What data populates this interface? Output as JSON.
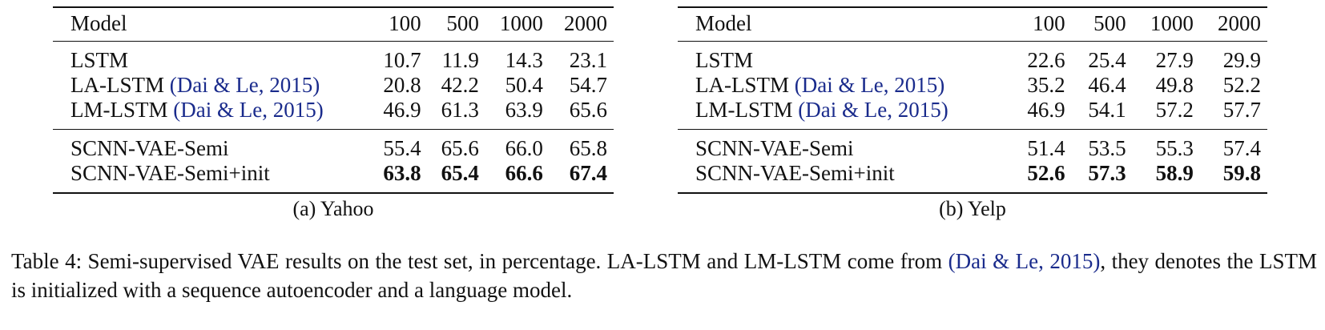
{
  "tables": [
    {
      "header": [
        "Model",
        "100",
        "500",
        "1000",
        "2000"
      ],
      "group1": [
        {
          "name": "LSTM",
          "cite": "",
          "values": [
            "10.7",
            "11.9",
            "14.3",
            "23.1"
          ]
        },
        {
          "name": "LA-LSTM ",
          "cite": "(Dai & Le, 2015)",
          "values": [
            "20.8",
            "42.2",
            "50.4",
            "54.7"
          ]
        },
        {
          "name": "LM-LSTM ",
          "cite": "(Dai & Le, 2015)",
          "values": [
            "46.9",
            "61.3",
            "63.9",
            "65.6"
          ]
        }
      ],
      "group2": [
        {
          "name": "SCNN-VAE-Semi",
          "values": [
            "55.4",
            "65.6",
            "66.0",
            "65.8"
          ]
        },
        {
          "name": "SCNN-VAE-Semi+init",
          "values": [
            "63.8",
            "65.4",
            "66.6",
            "67.4"
          ]
        }
      ],
      "subcaption": "(a) Yahoo"
    },
    {
      "header": [
        "Model",
        "100",
        "500",
        "1000",
        "2000"
      ],
      "group1": [
        {
          "name": "LSTM",
          "cite": "",
          "values": [
            "22.6",
            "25.4",
            "27.9",
            "29.9"
          ]
        },
        {
          "name": "LA-LSTM ",
          "cite": "(Dai & Le, 2015)",
          "values": [
            "35.2",
            "46.4",
            "49.8",
            "52.2"
          ]
        },
        {
          "name": "LM-LSTM ",
          "cite": "(Dai & Le, 2015)",
          "values": [
            "46.9",
            "54.1",
            "57.2",
            "57.7"
          ]
        }
      ],
      "group2": [
        {
          "name": "SCNN-VAE-Semi",
          "values": [
            "51.4",
            "53.5",
            "55.3",
            "57.4"
          ]
        },
        {
          "name": "SCNN-VAE-Semi+init",
          "values": [
            "52.6",
            "57.3",
            "58.9",
            "59.8"
          ]
        }
      ],
      "subcaption": "(b) Yelp"
    }
  ],
  "caption": {
    "part1": "Table 4: Semi-supervised VAE results on the test set, in percentage. LA-LSTM and LM-LSTM come from ",
    "cite": "(Dai & Le, 2015)",
    "part2": ", they denotes the LSTM is initialized with a sequence autoencoder and a language model."
  },
  "colors": {
    "citation": "#1a2b8c",
    "text": "#111111"
  }
}
